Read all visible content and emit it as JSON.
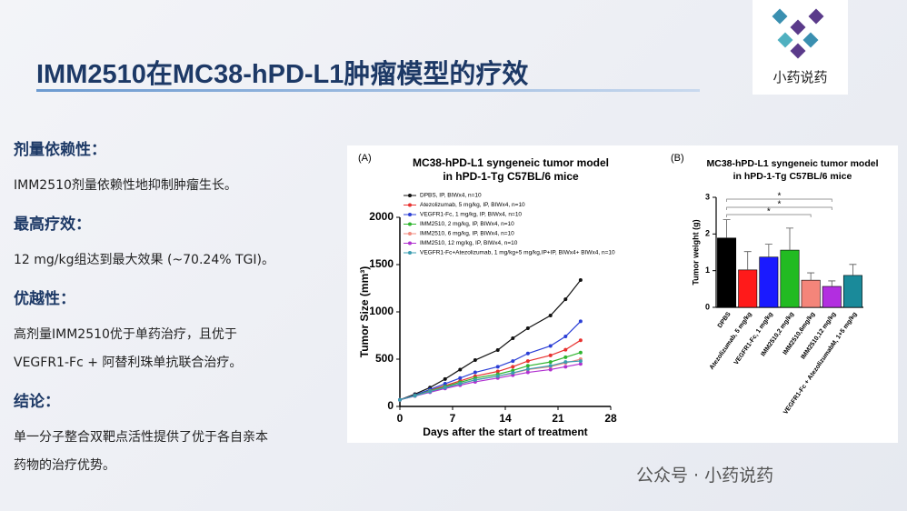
{
  "slide": {
    "title": "IMM2510在MC38-hPD-L1肿瘤模型的疗效",
    "logo_text": "小药说药",
    "watermark": "公众号 · 小药说药",
    "sections": [
      {
        "heading": "剂量依赖性：",
        "lines": [
          "IMM2510剂量依赖性地抑制肿瘤生长。"
        ]
      },
      {
        "heading": "最高疗效：",
        "lines": [
          "12 mg/kg组达到最大效果 (~70.24% TGI)。"
        ]
      },
      {
        "heading": "优越性：",
        "lines": [
          "高剂量IMM2510优于单药治疗，且优于",
          "VEGFR1-Fc + 阿替利珠单抗联合治疗。"
        ]
      },
      {
        "heading": "结论：",
        "lines": [
          "单一分子整合双靶点活性提供了优于各自亲本",
          "药物的治疗优势。"
        ]
      }
    ]
  },
  "chart_data": [
    {
      "type": "line",
      "panel": "(A)",
      "title": "MC38-hPD-L1 syngeneic tumor model",
      "subtitle": "in hPD-1-Tg C57BL/6 mice",
      "x_label": "Days after the start of treatment",
      "y_label": "Tumor Size (mm³)",
      "x": [
        0,
        2,
        4,
        6,
        8,
        10,
        13,
        15,
        17,
        20,
        22,
        24
      ],
      "xlim": [
        0,
        28
      ],
      "xticks": [
        0,
        7,
        14,
        21,
        28
      ],
      "ylim": [
        0,
        2000
      ],
      "yticks": [
        0,
        500,
        1000,
        1500,
        2000
      ],
      "series": [
        {
          "name": "DPBS,  IP, BIWx4, n=10",
          "color": "#111111",
          "values": [
            70,
            130,
            200,
            290,
            390,
            490,
            596,
            721,
            827,
            961,
            1134,
            1336
          ]
        },
        {
          "name": "Atezolizumab, 5 mg/kg,  IP, BIWx4, n=10",
          "color": "#e8312f",
          "values": [
            70,
            120,
            170,
            220,
            270,
            320,
            370,
            420,
            480,
            540,
            600,
            700
          ]
        },
        {
          "name": "VEGFR1-Fc, 1 mg/kg,  IP, BIWx4, n=10",
          "color": "#2b3fd6",
          "values": [
            70,
            120,
            180,
            240,
            300,
            360,
            420,
            480,
            560,
            640,
            740,
            900
          ]
        },
        {
          "name": "IMM2510, 2 mg/kg,  IP, BIWx4, n=10",
          "color": "#2fb52f",
          "values": [
            70,
            115,
            165,
            210,
            255,
            300,
            340,
            380,
            430,
            470,
            520,
            570
          ]
        },
        {
          "name": "IMM2510, 6 mg/kg,  IP, BIWx4, n=10",
          "color": "#f08a7e",
          "values": [
            70,
            110,
            160,
            200,
            240,
            280,
            320,
            350,
            390,
            420,
            460,
            500
          ]
        },
        {
          "name": "IMM2510, 12 mg/kg,  IP, BIWx4, n=10",
          "color": "#b030d0",
          "values": [
            70,
            110,
            150,
            190,
            225,
            260,
            300,
            330,
            360,
            390,
            420,
            450
          ]
        },
        {
          "name": "VEGFR1-Fc+Atezolizumab, 1 mg/kg+5 mg/kg,IP+IP, BIWx4+ BIWx4, n=10",
          "color": "#3a9cb0",
          "values": [
            70,
            112,
            158,
            200,
            240,
            280,
            320,
            355,
            395,
            430,
            470,
            480
          ]
        }
      ]
    },
    {
      "type": "bar",
      "panel": "(B)",
      "title": "MC38-hPD-L1 syngeneic tumor model",
      "subtitle": "in hPD-1-Tg C57BL/6 mice",
      "y_label": "Tumor weight (g)",
      "categories": [
        "DPBS",
        "Atezolizumab, 5 mg/kg",
        "VEGFR1-Fc, 1 mg/kg",
        "IMM2510,2 mg/kg",
        "IMM2510,6mg/kg",
        "IMM2510,12 mg/kg",
        "VEGFR1-Fc + AtezolizumabM, 1+5 mg/kg"
      ],
      "values": [
        1.89,
        1.02,
        1.37,
        1.56,
        0.74,
        0.57,
        0.87
      ],
      "errors": [
        0.5,
        0.5,
        0.35,
        0.6,
        0.2,
        0.15,
        0.3
      ],
      "colors": [
        "#000000",
        "#ff1a1a",
        "#1a1aff",
        "#22bb22",
        "#f4857a",
        "#b22ee0",
        "#1a8a9a"
      ],
      "ylim": [
        0,
        3
      ],
      "yticks": [
        0,
        1,
        2,
        3
      ],
      "annotations": [
        "*",
        "*",
        "*"
      ]
    }
  ]
}
